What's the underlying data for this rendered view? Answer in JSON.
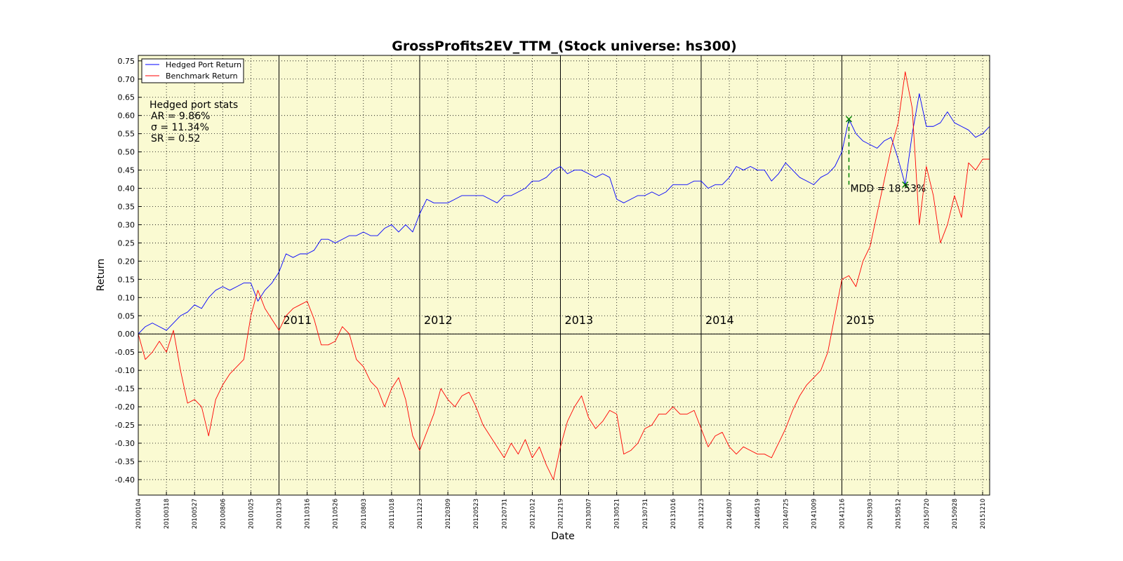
{
  "chart_data": {
    "type": "line",
    "title": "GrossProfits2EV_TTM_(Stock universe: hs300)",
    "x_label": "Date",
    "y_label": "Return",
    "background": "#fafad2",
    "grid": true,
    "legend_position": "upper-left",
    "categories": [
      "20100104",
      null,
      null,
      null,
      "20100318",
      null,
      null,
      null,
      "20100527",
      null,
      null,
      null,
      "20100806",
      null,
      null,
      null,
      "20101025",
      null,
      null,
      null,
      "20101230",
      null,
      null,
      null,
      "20110316",
      null,
      null,
      null,
      "20110526",
      null,
      null,
      null,
      "20110803",
      null,
      null,
      null,
      "20111018",
      null,
      null,
      null,
      "20111223",
      null,
      null,
      null,
      "20120309",
      null,
      null,
      null,
      "20120523",
      null,
      null,
      null,
      "20120731",
      null,
      null,
      null,
      "20121012",
      null,
      null,
      null,
      "20121219",
      null,
      null,
      null,
      "20130307",
      null,
      null,
      null,
      "20130521",
      null,
      null,
      null,
      "20130731",
      null,
      null,
      null,
      "20131016",
      null,
      null,
      null,
      "20131223",
      null,
      null,
      null,
      "20140307",
      null,
      null,
      null,
      "20140519",
      null,
      null,
      null,
      "20140725",
      null,
      null,
      null,
      "20141009",
      null,
      null,
      null,
      "20141216",
      null,
      null,
      null,
      "20150303",
      null,
      null,
      null,
      "20150512",
      null,
      null,
      null,
      "20150720",
      null,
      null,
      null,
      "20150928",
      null,
      null,
      null,
      "20151210",
      null
    ],
    "series": [
      {
        "name": "Hedged Port Return",
        "color": "#0000ff",
        "values": [
          0.0,
          0.02,
          0.03,
          0.02,
          0.01,
          0.03,
          0.05,
          0.06,
          0.08,
          0.07,
          0.1,
          0.12,
          0.13,
          0.12,
          0.13,
          0.14,
          0.14,
          0.09,
          0.12,
          0.14,
          0.17,
          0.22,
          0.21,
          0.22,
          0.22,
          0.23,
          0.26,
          0.26,
          0.25,
          0.26,
          0.27,
          0.27,
          0.28,
          0.27,
          0.27,
          0.29,
          0.3,
          0.28,
          0.3,
          0.28,
          0.33,
          0.37,
          0.36,
          0.36,
          0.36,
          0.37,
          0.38,
          0.38,
          0.38,
          0.38,
          0.37,
          0.36,
          0.38,
          0.38,
          0.39,
          0.4,
          0.42,
          0.42,
          0.43,
          0.45,
          0.46,
          0.44,
          0.45,
          0.45,
          0.44,
          0.43,
          0.44,
          0.43,
          0.37,
          0.36,
          0.37,
          0.38,
          0.38,
          0.39,
          0.38,
          0.39,
          0.41,
          0.41,
          0.41,
          0.42,
          0.42,
          0.4,
          0.41,
          0.41,
          0.43,
          0.46,
          0.45,
          0.46,
          0.45,
          0.45,
          0.42,
          0.44,
          0.47,
          0.45,
          0.43,
          0.42,
          0.41,
          0.43,
          0.44,
          0.46,
          0.5,
          0.59,
          0.55,
          0.53,
          0.52,
          0.51,
          0.53,
          0.54,
          0.48,
          0.41,
          0.55,
          0.66,
          0.57,
          0.57,
          0.58,
          0.61,
          0.58,
          0.57,
          0.56,
          0.54,
          0.55,
          0.57
        ]
      },
      {
        "name": "Benchmark Return",
        "color": "#ff0000",
        "values": [
          0.0,
          -0.07,
          -0.05,
          -0.02,
          -0.05,
          0.01,
          -0.1,
          -0.19,
          -0.18,
          -0.2,
          -0.28,
          -0.18,
          -0.14,
          -0.11,
          -0.09,
          -0.07,
          0.05,
          0.12,
          0.07,
          0.04,
          0.01,
          0.05,
          0.07,
          0.08,
          0.09,
          0.04,
          -0.03,
          -0.03,
          -0.02,
          0.02,
          0.0,
          -0.07,
          -0.09,
          -0.13,
          -0.15,
          -0.2,
          -0.15,
          -0.12,
          -0.18,
          -0.28,
          -0.32,
          -0.27,
          -0.22,
          -0.15,
          -0.18,
          -0.2,
          -0.17,
          -0.16,
          -0.2,
          -0.25,
          -0.28,
          -0.31,
          -0.34,
          -0.3,
          -0.33,
          -0.29,
          -0.34,
          -0.31,
          -0.36,
          -0.4,
          -0.31,
          -0.24,
          -0.2,
          -0.17,
          -0.23,
          -0.26,
          -0.24,
          -0.21,
          -0.22,
          -0.33,
          -0.32,
          -0.3,
          -0.26,
          -0.25,
          -0.22,
          -0.22,
          -0.2,
          -0.22,
          -0.22,
          -0.21,
          -0.26,
          -0.31,
          -0.28,
          -0.27,
          -0.31,
          -0.33,
          -0.31,
          -0.32,
          -0.33,
          -0.33,
          -0.34,
          -0.3,
          -0.26,
          -0.21,
          -0.17,
          -0.14,
          -0.12,
          -0.1,
          -0.05,
          0.05,
          0.15,
          0.16,
          0.13,
          0.2,
          0.24,
          0.33,
          0.42,
          0.51,
          0.58,
          0.72,
          0.62,
          0.3,
          0.46,
          0.38,
          0.25,
          0.3,
          0.38,
          0.32,
          0.47,
          0.45,
          0.48,
          0.48
        ]
      }
    ],
    "ylim": [
      -0.4425,
      0.765
    ],
    "yticks": [
      {
        "value": -0.4,
        "label": "-0.40"
      },
      {
        "value": -0.35,
        "label": "-0.35"
      },
      {
        "value": -0.3,
        "label": "-0.30"
      },
      {
        "value": -0.25,
        "label": "-0.25"
      },
      {
        "value": -0.2,
        "label": "-0.20"
      },
      {
        "value": -0.15,
        "label": "-0.15"
      },
      {
        "value": -0.1,
        "label": "-0.10"
      },
      {
        "value": -0.05,
        "label": "-0.05"
      },
      {
        "value": 0,
        "label": "0.00"
      },
      {
        "value": 0.05,
        "label": "0.05"
      },
      {
        "value": 0.1,
        "label": "0.10"
      },
      {
        "value": 0.15,
        "label": "0.15"
      },
      {
        "value": 0.2,
        "label": "0.20"
      },
      {
        "value": 0.25,
        "label": "0.25"
      },
      {
        "value": 0.3,
        "label": "0.30"
      },
      {
        "value": 0.35,
        "label": "0.35"
      },
      {
        "value": 0.4,
        "label": "0.40"
      },
      {
        "value": 0.45,
        "label": "0.45"
      },
      {
        "value": 0.5,
        "label": "0.50"
      },
      {
        "value": 0.55,
        "label": "0.55"
      },
      {
        "value": 0.6,
        "label": "0.60"
      },
      {
        "value": 0.65,
        "label": "0.65"
      },
      {
        "value": 0.7,
        "label": "0.70"
      },
      {
        "value": 0.75,
        "label": "0.75"
      }
    ],
    "year_lines": [
      {
        "label": "2011",
        "at": 20
      },
      {
        "label": "2012",
        "at": 40
      },
      {
        "label": "2013",
        "at": 60
      },
      {
        "label": "2014",
        "at": 80
      },
      {
        "label": "2015",
        "at": 100
      }
    ],
    "stats": {
      "title": "Hedged port stats",
      "lines": [
        "AR = 9.86%",
        "σ = 11.34%",
        "SR = 0.52"
      ]
    },
    "mdd": {
      "label": "MDD = 18.53%",
      "color": "#008000",
      "peak": 101,
      "trough": 109
    }
  }
}
